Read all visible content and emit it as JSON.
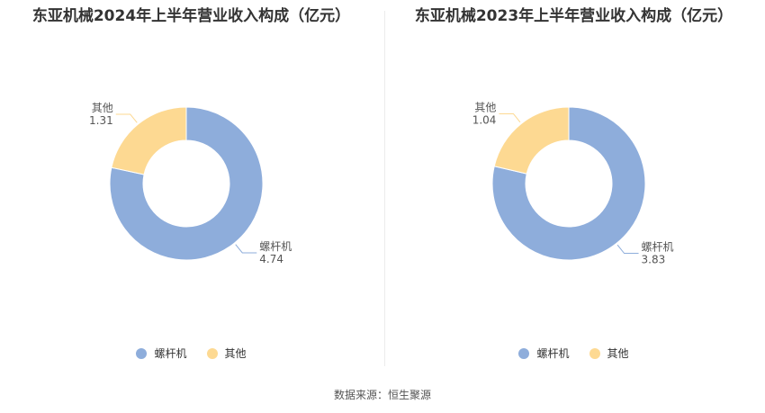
{
  "colors": {
    "screw": "#8EADDB",
    "other": "#FDD992",
    "leader": "#bbbbbb"
  },
  "chart_data": [
    {
      "type": "pie",
      "title": "东亚机械2024年上半年营业收入构成（亿元）",
      "categories": [
        "螺杆机",
        "其他"
      ],
      "values": [
        4.74,
        1.31
      ],
      "value_labels": [
        "4.74",
        "1.31"
      ],
      "legend": [
        "螺杆机",
        "其他"
      ],
      "legend_position": "bottom"
    },
    {
      "type": "pie",
      "title": "东亚机械2023年上半年营业收入构成（亿元）",
      "categories": [
        "螺杆机",
        "其他"
      ],
      "values": [
        3.83,
        1.04
      ],
      "value_labels": [
        "3.83",
        "1.04"
      ],
      "legend": [
        "螺杆机",
        "其他"
      ],
      "legend_position": "bottom"
    }
  ],
  "footer": {
    "source": "数据来源：恒生聚源"
  }
}
